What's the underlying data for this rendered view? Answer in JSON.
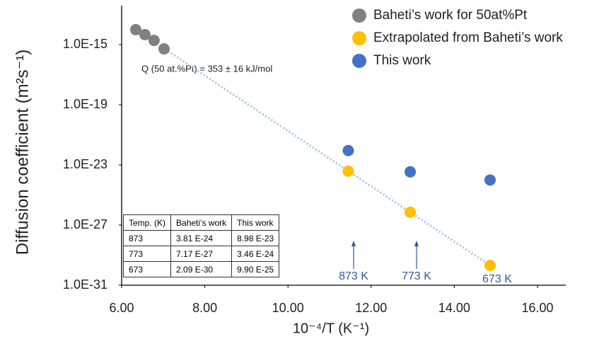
{
  "chart_data": {
    "type": "scatter",
    "log_y": true,
    "y_label": "Diffusion coefficient (m²s⁻¹)",
    "x_label": "10⁻⁴/T (K⁻¹)",
    "xlim": [
      6,
      16
    ],
    "ylim": [
      1e-31,
      1e-13
    ],
    "xticks": [
      {
        "value": 6,
        "label": "6.00"
      },
      {
        "value": 8,
        "label": "8.00"
      },
      {
        "value": 10,
        "label": "10.00"
      },
      {
        "value": 12,
        "label": "12.00"
      },
      {
        "value": 14,
        "label": "14.00"
      },
      {
        "value": 16,
        "label": "16.00"
      }
    ],
    "yticks": [
      {
        "value": 1e-15,
        "label": "1.0E-15"
      },
      {
        "value": 1e-19,
        "label": "1.0E-19"
      },
      {
        "value": 1e-23,
        "label": "1.0E-23"
      },
      {
        "value": 1e-27,
        "label": "1.0E-27"
      },
      {
        "value": 1e-31,
        "label": "1.0E-31"
      }
    ],
    "legend": "upper right",
    "series": [
      {
        "name": "Baheti’s work for 50at%Pt",
        "color": "#808080",
        "x": [
          6.34,
          6.56,
          6.78,
          7.02
        ],
        "values": [
          9.8e-15,
          4.6e-15,
          1.9e-15,
          5.2e-16
        ]
      },
      {
        "name": "Extrapolated from Baheti’s work",
        "color": "#ffc000",
        "x": [
          11.45,
          12.94,
          14.86
        ],
        "values": [
          3.81e-24,
          7.17e-27,
          2.09e-30
        ]
      },
      {
        "name": "This work",
        "color": "#4472c4",
        "x": [
          11.45,
          12.94,
          14.86
        ],
        "values": [
          8.98e-23,
          3.46e-24,
          9.9e-25
        ]
      }
    ],
    "annotations": [
      "Q (50 at.%Pt) = 353 ± 16 kJ/mol",
      "873 K",
      "773 K",
      "673 K"
    ],
    "table": {
      "header": [
        "Temp. (K)",
        "Baheti’s work",
        "This work"
      ],
      "rows": [
        [
          "873",
          "3.81 E-24",
          "8.98 E-23"
        ],
        [
          "773",
          "7.17 E-27",
          "3.46 E-24"
        ],
        [
          "673",
          "2.09 E-30",
          "9.90 E-25"
        ]
      ]
    }
  }
}
